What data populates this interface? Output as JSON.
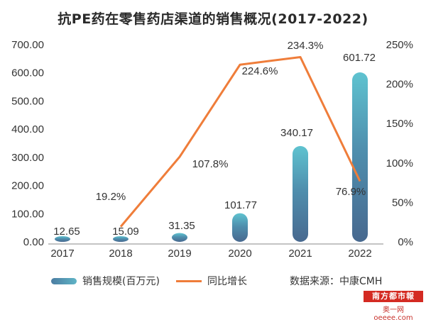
{
  "chart_data": {
    "type": "bar+line",
    "title": "抗PE药在零售药店渠道的销售概况(2017-2022)",
    "categories": [
      "2017",
      "2018",
      "2019",
      "2020",
      "2021",
      "2022"
    ],
    "series": [
      {
        "name": "销售规模(百万元)",
        "type": "bar",
        "axis": "left",
        "values": [
          12.65,
          15.09,
          31.35,
          101.77,
          340.17,
          601.72
        ],
        "labels": [
          "12.65",
          "15.09",
          "31.35",
          "101.77",
          "340.17",
          "601.72"
        ]
      },
      {
        "name": "同比增长",
        "type": "line",
        "axis": "right",
        "values": [
          null,
          19.2,
          107.8,
          224.6,
          234.3,
          76.9
        ],
        "labels": [
          "",
          "19.2%",
          "107.8%",
          "224.6%",
          "234.3%",
          "76.9%"
        ]
      }
    ],
    "y_left": {
      "ylim": [
        0,
        700
      ],
      "ticks": [
        "0.00",
        "100.00",
        "200.00",
        "300.00",
        "400.00",
        "500.00",
        "600.00",
        "700.00"
      ]
    },
    "y_right": {
      "ylim": [
        0,
        250
      ],
      "ticks": [
        "0%",
        "50%",
        "100%",
        "150%",
        "200%",
        "250%"
      ]
    },
    "grid": false,
    "legend": "bottom"
  },
  "legend": {
    "bar_label": "销售规模(百万元)",
    "line_label": "同比增长"
  },
  "source": "数据来源：中康CMH",
  "watermark": {
    "brand": "南方都市報",
    "site": "奥一网 oeeee.com"
  },
  "colors": {
    "bar_dark": "#4a6f96",
    "bar_light": "#5fbfcc",
    "line": "#ef7d3a",
    "text": "#333333"
  }
}
